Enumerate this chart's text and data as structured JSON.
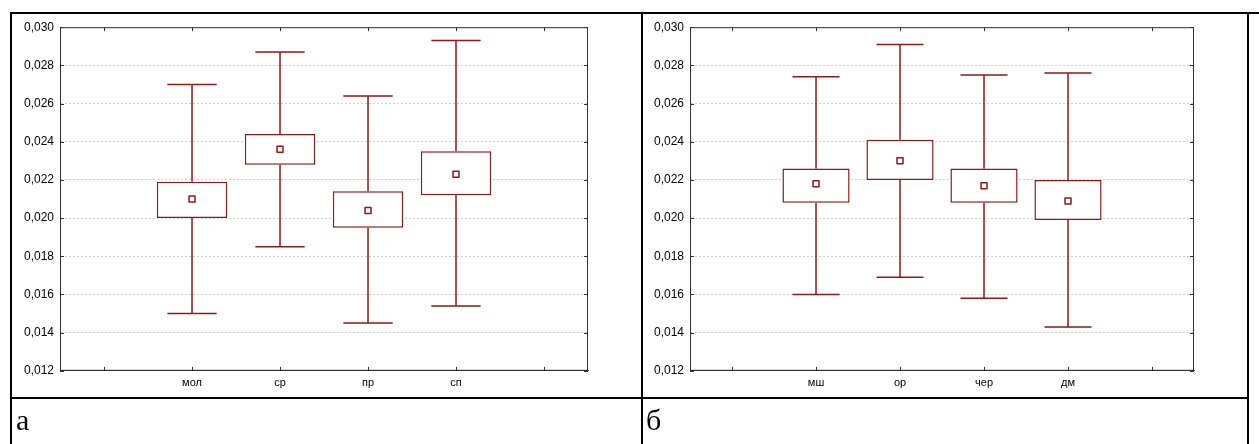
{
  "chart_data": [
    {
      "type": "box",
      "categories": [
        null,
        "мол",
        "ср",
        "пр",
        "сп",
        null
      ],
      "color": "#8b1a1a",
      "boxes": [
        null,
        {
          "low": 0.015,
          "q1": 0.02,
          "median": 0.021,
          "q3": 0.0219,
          "high": 0.027
        },
        {
          "low": 0.0185,
          "q1": 0.0228,
          "median": 0.0236,
          "q3": 0.0244,
          "high": 0.0287
        },
        {
          "low": 0.0145,
          "q1": 0.0195,
          "median": 0.0204,
          "q3": 0.0214,
          "high": 0.0264
        },
        {
          "low": 0.0154,
          "q1": 0.0212,
          "median": 0.0223,
          "q3": 0.0235,
          "high": 0.0293
        },
        null
      ],
      "ylim": [
        0.012,
        0.03
      ],
      "yticks": [
        {
          "value": 0.012,
          "label": "0,012"
        },
        {
          "value": 0.014,
          "label": "0,014"
        },
        {
          "value": 0.016,
          "label": "0,016"
        },
        {
          "value": 0.018,
          "label": "0,018"
        },
        {
          "value": 0.02,
          "label": "0,020"
        },
        {
          "value": 0.022,
          "label": "0,022"
        },
        {
          "value": 0.024,
          "label": "0,024"
        },
        {
          "value": 0.026,
          "label": "0,026"
        },
        {
          "value": 0.028,
          "label": "0,028"
        },
        {
          "value": 0.03,
          "label": "0,030"
        }
      ],
      "grid": "y",
      "legend": false,
      "annotations": [
        "а"
      ]
    },
    {
      "type": "box",
      "categories": [
        null,
        "мш",
        "ор",
        "чер",
        "дм",
        null
      ],
      "color": "#8b1a1a",
      "boxes": [
        null,
        {
          "low": 0.016,
          "q1": 0.0208,
          "median": 0.0218,
          "q3": 0.0226,
          "high": 0.0274
        },
        {
          "low": 0.0169,
          "q1": 0.022,
          "median": 0.023,
          "q3": 0.0241,
          "high": 0.0291
        },
        {
          "low": 0.0158,
          "q1": 0.0208,
          "median": 0.0217,
          "q3": 0.0226,
          "high": 0.0275
        },
        {
          "low": 0.0143,
          "q1": 0.0199,
          "median": 0.0209,
          "q3": 0.022,
          "high": 0.0276
        },
        null
      ],
      "ylim": [
        0.012,
        0.03
      ],
      "yticks": [
        {
          "value": 0.012,
          "label": "0,012"
        },
        {
          "value": 0.014,
          "label": "0,014"
        },
        {
          "value": 0.016,
          "label": "0,016"
        },
        {
          "value": 0.018,
          "label": "0,018"
        },
        {
          "value": 0.02,
          "label": "0,020"
        },
        {
          "value": 0.022,
          "label": "0,022"
        },
        {
          "value": 0.024,
          "label": "0,024"
        },
        {
          "value": 0.026,
          "label": "0,026"
        },
        {
          "value": 0.028,
          "label": "0,028"
        },
        {
          "value": 0.03,
          "label": "0,030"
        }
      ],
      "grid": "y",
      "legend": false,
      "annotations": [
        "б"
      ]
    }
  ]
}
